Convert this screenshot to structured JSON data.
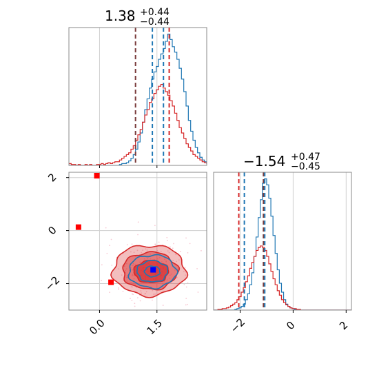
{
  "colors": {
    "blue": "#1f77b4",
    "red": "#d62728",
    "quantile_red": "#d62728",
    "quantile_dark": "#7a3b3b",
    "grid": "#cfcfcf",
    "axes": "#888888",
    "marker_red": "#ff0000",
    "marker_blue": "#0000ff",
    "scatter_pink": "#f4a6b8"
  },
  "chart_data": [
    {
      "type": "step-histogram",
      "panel": "p1-marginal",
      "title": {
        "value": "1.38",
        "upper": "+0.44",
        "lower": "−0.44"
      },
      "xlim": [
        -0.8,
        2.8
      ],
      "grid_x": [
        0.0,
        1.5
      ],
      "bins_start": -0.8,
      "bin_width": 0.06,
      "series": [
        {
          "color": "blue",
          "values": [
            0,
            0,
            0,
            0,
            0,
            0,
            0,
            0,
            0,
            0,
            0,
            0,
            0,
            0,
            0,
            0,
            0,
            0,
            0,
            0,
            0,
            0,
            1,
            2,
            2,
            3,
            5,
            8,
            12,
            18,
            26,
            36,
            48,
            62,
            74,
            86,
            96,
            104,
            110,
            118,
            124,
            130,
            138,
            146,
            140,
            132,
            126,
            118,
            108,
            96,
            82,
            66,
            50,
            38,
            28,
            20,
            14,
            9,
            6,
            4,
            2,
            1
          ]
        },
        {
          "color": "red",
          "values": [
            2,
            1,
            1,
            0,
            1,
            0,
            0,
            1,
            0,
            1,
            0,
            0,
            1,
            1,
            2,
            1,
            2,
            3,
            2,
            3,
            4,
            4,
            6,
            8,
            10,
            12,
            14,
            18,
            22,
            28,
            34,
            40,
            48,
            56,
            62,
            70,
            74,
            80,
            84,
            88,
            90,
            86,
            82,
            78,
            72,
            66,
            58,
            50,
            42,
            36,
            30,
            24,
            20,
            16,
            12,
            10,
            8,
            6,
            4,
            3,
            2,
            1
          ]
        }
      ],
      "quantiles": [
        {
          "x": 0.94,
          "color": "quantile_dark"
        },
        {
          "x": 1.38,
          "color": "blue"
        },
        {
          "x": 1.67,
          "color": "blue"
        },
        {
          "x": 1.82,
          "color": "quantile_red"
        }
      ]
    },
    {
      "type": "step-histogram",
      "panel": "p2-marginal",
      "title": {
        "value": "−1.54",
        "upper": "+0.47",
        "lower": "−0.45"
      },
      "xlim": [
        -3.0,
        2.2
      ],
      "xticks": [
        -2,
        0,
        2
      ],
      "xtick_labels": [
        "−2",
        "0",
        "2"
      ],
      "bins_start": -3.0,
      "bin_width": 0.08,
      "series": [
        {
          "color": "blue",
          "values": [
            0,
            0,
            0,
            0,
            0,
            0,
            0,
            0,
            0,
            0,
            1,
            2,
            3,
            5,
            8,
            14,
            22,
            34,
            50,
            72,
            98,
            124,
            148,
            170,
            176,
            168,
            150,
            126,
            100,
            76,
            54,
            36,
            24,
            14,
            8,
            5,
            3,
            2,
            1,
            0,
            0,
            0,
            0,
            0,
            0,
            0,
            0,
            0,
            0,
            0,
            0,
            0,
            0,
            0,
            0,
            0,
            0,
            0,
            0,
            0,
            0,
            0,
            0,
            0,
            0
          ]
        },
        {
          "color": "red",
          "values": [
            0,
            0,
            1,
            1,
            2,
            2,
            3,
            4,
            6,
            8,
            10,
            14,
            18,
            24,
            30,
            38,
            46,
            56,
            64,
            72,
            80,
            84,
            86,
            84,
            80,
            72,
            62,
            52,
            42,
            34,
            26,
            20,
            14,
            10,
            7,
            5,
            3,
            2,
            2,
            1,
            1,
            0,
            0,
            0,
            0,
            0,
            0,
            0,
            0,
            0,
            0,
            0,
            0,
            0,
            0,
            0,
            0,
            0,
            0,
            0,
            0,
            0,
            0,
            0,
            0
          ]
        }
      ],
      "quantiles": [
        {
          "x": -2.05,
          "color": "quantile_red"
        },
        {
          "x": -1.84,
          "color": "blue"
        },
        {
          "x": -1.12,
          "color": "quantile_dark"
        },
        {
          "x": -1.07,
          "color": "blue"
        }
      ]
    },
    {
      "type": "2d-contour",
      "panel": "joint",
      "xlim": [
        -0.8,
        2.8
      ],
      "ylim": [
        -3.0,
        2.2
      ],
      "xticks": [
        0.0,
        1.5
      ],
      "xtick_labels": [
        "0.0",
        "1.5"
      ],
      "yticks": [
        -2,
        0,
        2
      ],
      "ytick_labels": [
        "−2",
        "0",
        "2"
      ],
      "red_contours": [
        {
          "cx": 1.3,
          "cy": -1.5,
          "rx": 0.95,
          "ry": 0.95
        },
        {
          "cx": 1.32,
          "cy": -1.52,
          "rx": 0.72,
          "ry": 0.7
        },
        {
          "cx": 1.35,
          "cy": -1.55,
          "rx": 0.45,
          "ry": 0.42
        }
      ],
      "blue_contours": [
        {
          "cx": 1.38,
          "cy": -1.54,
          "rx": 0.62,
          "ry": 0.62
        },
        {
          "cx": 1.38,
          "cy": -1.54,
          "rx": 0.4,
          "ry": 0.4
        },
        {
          "cx": 1.38,
          "cy": -1.54,
          "rx": 0.2,
          "ry": 0.2
        }
      ],
      "markers": [
        {
          "x": -0.07,
          "y": 2.07,
          "color": "marker_red"
        },
        {
          "x": -0.55,
          "y": 0.13,
          "color": "marker_red"
        },
        {
          "x": 0.3,
          "y": -1.95,
          "color": "marker_red"
        },
        {
          "x": 1.4,
          "y": -1.48,
          "color": "marker_blue"
        }
      ]
    }
  ]
}
